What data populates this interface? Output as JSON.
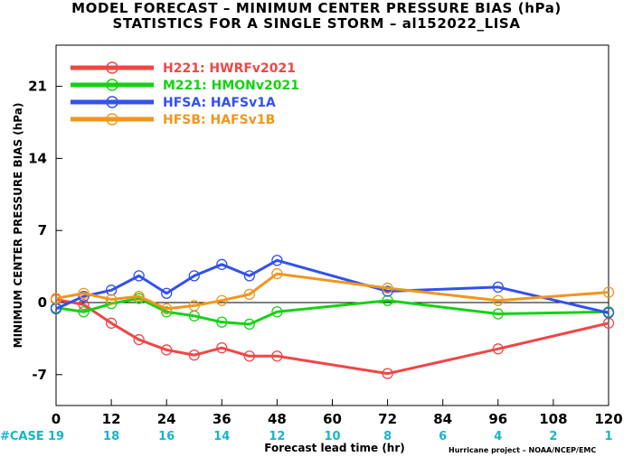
{
  "chart_data": {
    "type": "line",
    "title": "MODEL FORECAST – MINIMUM CENTER PRESSURE BIAS (hPa)",
    "subtitle": "STATISTICS FOR A SINGLE STORM – al152022_LISA",
    "xlabel": "Forecast lead time (hr)",
    "ylabel": "MINIMUM CENTER PRESSURE BIAS (hPa)",
    "xlim": [
      0,
      120
    ],
    "ylim": [
      -10,
      25
    ],
    "x_ticks": [
      0,
      12,
      24,
      36,
      48,
      60,
      72,
      84,
      96,
      108,
      120
    ],
    "y_ticks": [
      -7,
      0,
      7,
      14,
      21
    ],
    "case_label": "#CASE",
    "case_counts": [
      19,
      18,
      16,
      14,
      12,
      10,
      8,
      6,
      4,
      2,
      1
    ],
    "credit": "Hurricane project – NOAA/NCEP/EMC",
    "legend_position": "top-left",
    "grid": false,
    "zero_line": true,
    "series": [
      {
        "name": "H221: HWRFv2021",
        "color": "#f04646",
        "x": [
          0,
          6,
          12,
          18,
          24,
          30,
          36,
          42,
          48,
          72,
          96,
          120
        ],
        "y": [
          0.3,
          -0.2,
          -2.0,
          -3.6,
          -4.6,
          -5.1,
          -4.4,
          -5.2,
          -5.2,
          -6.9,
          -4.5,
          -2.0
        ]
      },
      {
        "name": "M221: HMONv2021",
        "color": "#14d214",
        "x": [
          0,
          6,
          12,
          18,
          24,
          30,
          36,
          42,
          48,
          72,
          96,
          120
        ],
        "y": [
          -0.5,
          -0.9,
          -0.1,
          0.4,
          -0.9,
          -1.3,
          -1.9,
          -2.1,
          -0.9,
          0.2,
          -1.1,
          -0.9
        ]
      },
      {
        "name": "HFSA: HAFSv1A",
        "color": "#3250f0",
        "x": [
          0,
          6,
          12,
          18,
          24,
          30,
          36,
          42,
          48,
          72,
          96,
          120
        ],
        "y": [
          -0.6,
          0.6,
          1.2,
          2.6,
          0.9,
          2.6,
          3.7,
          2.6,
          4.1,
          1.1,
          1.5,
          -1.0
        ]
      },
      {
        "name": "HFSB: HAFSv1B",
        "color": "#f0961e",
        "x": [
          0,
          6,
          12,
          18,
          24,
          30,
          36,
          42,
          48,
          72,
          96,
          120
        ],
        "y": [
          0.4,
          0.9,
          0.3,
          0.6,
          -0.6,
          -0.3,
          0.2,
          0.8,
          2.8,
          1.4,
          0.2,
          1.0
        ]
      }
    ]
  }
}
